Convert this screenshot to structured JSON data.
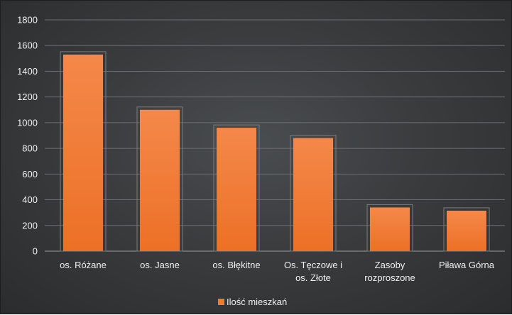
{
  "chart_data": {
    "type": "bar",
    "categories": [
      [
        "os. Różane"
      ],
      [
        "os. Jasne"
      ],
      [
        "os. Błękitne"
      ],
      [
        "Os. Tęczowe i",
        "os. Złote"
      ],
      [
        "Zasoby",
        "rozproszone"
      ],
      [
        "Piława Górna"
      ]
    ],
    "series": [
      {
        "name": "Ilość mieszkań",
        "values": [
          1530,
          1100,
          960,
          880,
          340,
          315
        ],
        "color": "#f07a2e"
      }
    ],
    "yticks": [
      "0",
      "200",
      "400",
      "600",
      "800",
      "1000",
      "1200",
      "1400",
      "1600",
      "1800"
    ],
    "ylim": [
      0,
      1800
    ],
    "grid": true,
    "legend_position": "bottom"
  }
}
